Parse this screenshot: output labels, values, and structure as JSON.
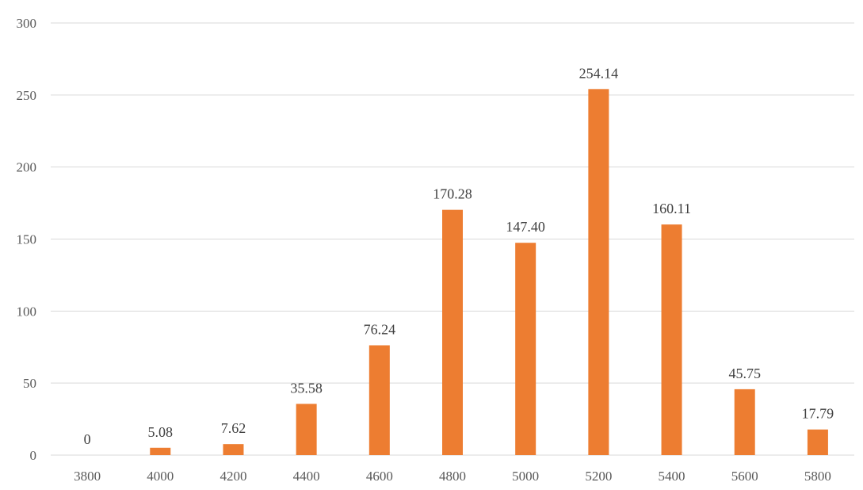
{
  "chart_data": {
    "type": "bar",
    "title": "",
    "xlabel": "",
    "ylabel": "",
    "categories": [
      "3800",
      "4000",
      "4200",
      "4400",
      "4600",
      "4800",
      "5000",
      "5200",
      "5400",
      "5600",
      "5800"
    ],
    "values": [
      0,
      5.08,
      7.62,
      35.58,
      76.24,
      170.28,
      147.4,
      254.14,
      160.11,
      45.75,
      17.79
    ],
    "data_labels": [
      "0",
      "5.08",
      "7.62",
      "35.58",
      "76.24",
      "170.28",
      "147.40",
      "254.14",
      "160.11",
      "45.75",
      "17.79"
    ],
    "ylim": [
      0,
      300
    ],
    "yticks": [
      0,
      50,
      100,
      150,
      200,
      250,
      300
    ],
    "grid": true,
    "legend": "none",
    "bar_color": "#ED7D31"
  }
}
